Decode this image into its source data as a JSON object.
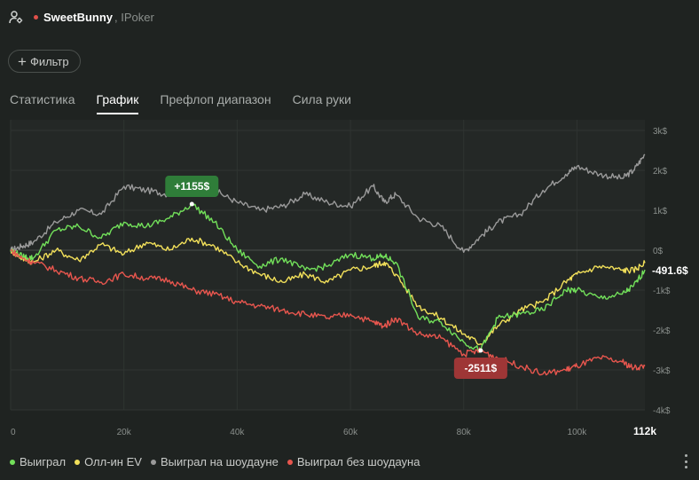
{
  "header": {
    "player_name": "SweetBunny",
    "network_label": ", IPoker"
  },
  "filter": {
    "label": "Фильтр"
  },
  "tabs": [
    {
      "label": "Статистика",
      "active": false
    },
    {
      "label": "График",
      "active": true
    },
    {
      "label": "Префлоп диапазон",
      "active": false
    },
    {
      "label": "Сила руки",
      "active": false
    }
  ],
  "legend": [
    {
      "label": "Выиграл",
      "color": "#72e05a"
    },
    {
      "label": "Олл-ин EV",
      "color": "#f2e05a"
    },
    {
      "label": "Выиграл на шоудауне",
      "color": "#9a9a9a"
    },
    {
      "label": "Выиграл без шоудауна",
      "color": "#e8564e"
    }
  ],
  "chart_data": {
    "type": "line",
    "x": [
      0,
      2000,
      4000,
      8000,
      12000,
      16000,
      20000,
      24000,
      28000,
      32000,
      36000,
      40000,
      44000,
      48000,
      52000,
      56000,
      60000,
      64000,
      66000,
      68000,
      72000,
      76000,
      80000,
      83000,
      86000,
      90000,
      94000,
      98000,
      100000,
      104000,
      108000,
      110000,
      112000
    ],
    "xlim": [
      0,
      112000
    ],
    "ylim": [
      -4000,
      3000
    ],
    "x_ticks": [
      {
        "value": 0,
        "label": "0"
      },
      {
        "value": 20000,
        "label": "20k"
      },
      {
        "value": 40000,
        "label": "40k"
      },
      {
        "value": 60000,
        "label": "60k"
      },
      {
        "value": 80000,
        "label": "80k"
      },
      {
        "value": 100000,
        "label": "100k"
      }
    ],
    "x_end_label": "112k",
    "y_ticks": [
      {
        "value": 3000,
        "label": "3k$"
      },
      {
        "value": 2000,
        "label": "2k$"
      },
      {
        "value": 1000,
        "label": "1k$"
      },
      {
        "value": 0,
        "label": "0$"
      },
      {
        "value": -1000,
        "label": "-1k$"
      },
      {
        "value": -2000,
        "label": "-2k$"
      },
      {
        "value": -3000,
        "label": "-3k$"
      },
      {
        "value": -4000,
        "label": "-4k$"
      }
    ],
    "series": [
      {
        "name": "Выиграл na шоудауне",
        "color": "#9a9a9a",
        "values": [
          0,
          100,
          200,
          700,
          1000,
          900,
          1600,
          1500,
          1400,
          1700,
          1500,
          1200,
          1000,
          1100,
          1400,
          1200,
          1100,
          1600,
          1200,
          1400,
          800,
          600,
          -50,
          350,
          700,
          900,
          1500,
          1900,
          2100,
          1900,
          1800,
          2000,
          2400
        ]
      },
      {
        "name": "Олл-ин EV",
        "color": "#f2e05a",
        "values": [
          0,
          -200,
          -300,
          0,
          -250,
          150,
          -100,
          200,
          0,
          300,
          100,
          -300,
          -600,
          -800,
          -600,
          -800,
          -500,
          -400,
          -300,
          -600,
          -1400,
          -1700,
          -2100,
          -2350,
          -1900,
          -1500,
          -1300,
          -800,
          -600,
          -400,
          -500,
          -500,
          -320
        ]
      },
      {
        "name": "Выиграл",
        "color": "#72e05a",
        "values": [
          0,
          -150,
          -200,
          500,
          600,
          300,
          700,
          600,
          800,
          1155,
          700,
          0,
          -400,
          -200,
          -500,
          -400,
          -100,
          -200,
          -150,
          -300,
          -1700,
          -1800,
          -2300,
          -2511,
          -1700,
          -1600,
          -1500,
          -1000,
          -1000,
          -1200,
          -1100,
          -900,
          -491.6
        ]
      },
      {
        "name": "Выиграл без шоудауна",
        "color": "#e8564e",
        "values": [
          0,
          -200,
          -300,
          -500,
          -700,
          -800,
          -600,
          -700,
          -750,
          -1000,
          -1100,
          -1300,
          -1400,
          -1500,
          -1600,
          -1700,
          -1600,
          -1800,
          -1900,
          -1700,
          -2100,
          -2200,
          -2600,
          -2511,
          -2700,
          -2900,
          -3100,
          -3000,
          -2900,
          -2700,
          -2800,
          -2950,
          -2900
        ]
      }
    ],
    "annotations": [
      {
        "label": "+1155$",
        "x": 32000,
        "y": 1155,
        "color": "#2f7d39"
      },
      {
        "label": "-2511$",
        "x": 83000,
        "y": -2511,
        "color": "#9e3636"
      }
    ],
    "end_label": "-491.6$"
  }
}
